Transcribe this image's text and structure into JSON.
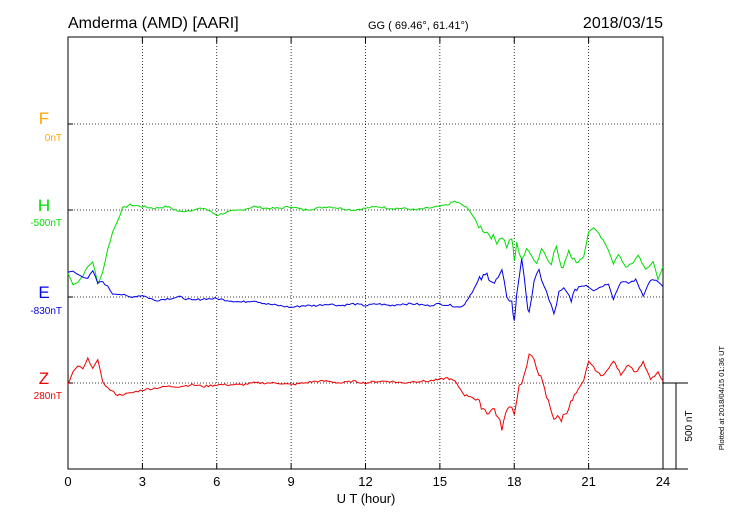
{
  "header": {
    "station": "Amderma (AMD)  [AARI]",
    "coords": "GG ( 69.46°,  61.41°)",
    "date": "2018/03/15"
  },
  "plotted_note": "Plotted at 2018/04/15 01:36 UT",
  "colors": {
    "F": "#ffa500",
    "H": "#00dd00",
    "E": "#0000ee",
    "Z": "#ee0000"
  },
  "chart_data": {
    "type": "line",
    "title": "",
    "xlabel": "U T (hour)",
    "xlim": [
      0,
      24
    ],
    "xticks": [
      "0",
      "3",
      "6",
      "9",
      "12",
      "15",
      "18",
      "21",
      "24"
    ],
    "grid": true,
    "scale_bar": {
      "label": "500 nT",
      "value_nT": 500
    },
    "series": [
      {
        "name": "F",
        "baseline": "0nT",
        "values": []
      },
      {
        "name": "H",
        "baseline": "-500nT",
        "x": [
          0,
          0.2,
          0.4,
          0.6,
          0.8,
          1.0,
          1.2,
          1.4,
          1.6,
          1.8,
          2.0,
          2.2,
          2.5,
          3.0,
          3.5,
          4.0,
          4.5,
          5.0,
          5.5,
          6.0,
          6.5,
          7.0,
          7.5,
          8.0,
          8.5,
          9.0,
          9.5,
          10.0,
          10.5,
          11.0,
          11.5,
          12.0,
          12.5,
          13.0,
          13.5,
          14.0,
          14.5,
          15.0,
          15.3,
          15.6,
          15.9,
          16.2,
          16.5,
          16.8,
          17.0,
          17.3,
          17.5,
          17.7,
          17.9,
          18.0,
          18.1,
          18.3,
          18.5,
          18.7,
          18.9,
          19.1,
          19.3,
          19.5,
          19.7,
          19.9,
          20.2,
          20.5,
          20.8,
          21.0,
          21.2,
          21.5,
          21.8,
          22.0,
          22.2,
          22.5,
          22.8,
          23.0,
          23.3,
          23.6,
          23.8,
          24.0
        ],
        "y": [
          -370,
          -430,
          -420,
          -380,
          -330,
          -300,
          -430,
          -360,
          -230,
          -130,
          -60,
          10,
          30,
          20,
          10,
          20,
          -10,
          0,
          10,
          -30,
          -10,
          0,
          20,
          10,
          10,
          20,
          0,
          10,
          20,
          10,
          0,
          10,
          20,
          10,
          10,
          0,
          10,
          20,
          30,
          50,
          30,
          0,
          -80,
          -120,
          -140,
          -180,
          -150,
          -210,
          -160,
          -300,
          -200,
          -280,
          -240,
          -250,
          -310,
          -220,
          -270,
          -300,
          -210,
          -350,
          -230,
          -310,
          -270,
          -130,
          -100,
          -160,
          -230,
          -310,
          -260,
          -330,
          -310,
          -260,
          -350,
          -300,
          -400,
          -330
        ]
      },
      {
        "name": "E",
        "baseline": "-830nT",
        "x": [
          0,
          0.2,
          0.4,
          0.6,
          0.8,
          1.0,
          1.2,
          1.4,
          1.6,
          1.8,
          2.0,
          2.5,
          3.0,
          3.5,
          4.0,
          4.5,
          5.0,
          5.5,
          6.0,
          6.5,
          7.0,
          7.5,
          8.0,
          8.5,
          9.0,
          9.5,
          10.0,
          10.5,
          11.0,
          11.5,
          12.0,
          12.5,
          13.0,
          13.5,
          14.0,
          14.5,
          15.0,
          15.5,
          15.8,
          16.0,
          16.3,
          16.6,
          16.9,
          17.2,
          17.5,
          17.7,
          17.9,
          18.0,
          18.1,
          18.3,
          18.5,
          18.6,
          18.8,
          19.0,
          19.2,
          19.4,
          19.6,
          19.8,
          20.0,
          20.3,
          20.6,
          20.9,
          21.2,
          21.5,
          21.8,
          22.0,
          22.3,
          22.6,
          22.9,
          23.2,
          23.5,
          23.8,
          24.0
        ],
        "y": [
          140,
          150,
          130,
          120,
          110,
          150,
          80,
          90,
          60,
          20,
          20,
          0,
          10,
          -20,
          -10,
          0,
          -20,
          -10,
          -10,
          -20,
          -30,
          -20,
          -40,
          -50,
          -60,
          -50,
          -50,
          -40,
          -50,
          -40,
          -50,
          -40,
          -50,
          -40,
          -40,
          -50,
          -40,
          -50,
          -60,
          -40,
          30,
          100,
          130,
          80,
          140,
          10,
          -30,
          -150,
          20,
          230,
          -30,
          -80,
          80,
          150,
          70,
          -20,
          -100,
          20,
          40,
          -10,
          60,
          70,
          40,
          60,
          80,
          -10,
          90,
          80,
          100,
          10,
          100,
          90,
          60
        ]
      },
      {
        "name": "Z",
        "baseline": "280nT",
        "x": [
          0,
          0.2,
          0.4,
          0.6,
          0.8,
          1.0,
          1.2,
          1.4,
          1.6,
          2.0,
          2.5,
          3.0,
          3.5,
          4.0,
          4.5,
          5.0,
          5.5,
          6.0,
          6.5,
          7.0,
          7.5,
          8.0,
          8.5,
          9.0,
          9.5,
          10.0,
          10.5,
          11.0,
          11.5,
          12.0,
          12.5,
          13.0,
          13.5,
          14.0,
          14.5,
          15.0,
          15.3,
          15.6,
          16.0,
          16.3,
          16.6,
          16.9,
          17.2,
          17.5,
          17.8,
          18.0,
          18.2,
          18.4,
          18.6,
          18.8,
          19.0,
          19.3,
          19.6,
          19.9,
          20.2,
          20.5,
          20.8,
          21.0,
          21.2,
          21.5,
          21.8,
          22.0,
          22.3,
          22.6,
          22.9,
          23.2,
          23.5,
          23.8,
          24.0
        ],
        "y": [
          -10,
          60,
          100,
          80,
          140,
          90,
          130,
          10,
          -30,
          -70,
          -60,
          -40,
          -30,
          -20,
          -20,
          -10,
          -20,
          -10,
          -10,
          -10,
          0,
          0,
          0,
          -10,
          0,
          10,
          10,
          0,
          10,
          0,
          10,
          10,
          0,
          10,
          10,
          20,
          30,
          10,
          -70,
          -80,
          -120,
          -170,
          -150,
          -260,
          -120,
          -170,
          -20,
          40,
          150,
          140,
          60,
          -80,
          -200,
          -210,
          -140,
          -60,
          10,
          130,
          90,
          40,
          80,
          130,
          50,
          110,
          60,
          120,
          20,
          60,
          10
        ]
      }
    ]
  }
}
